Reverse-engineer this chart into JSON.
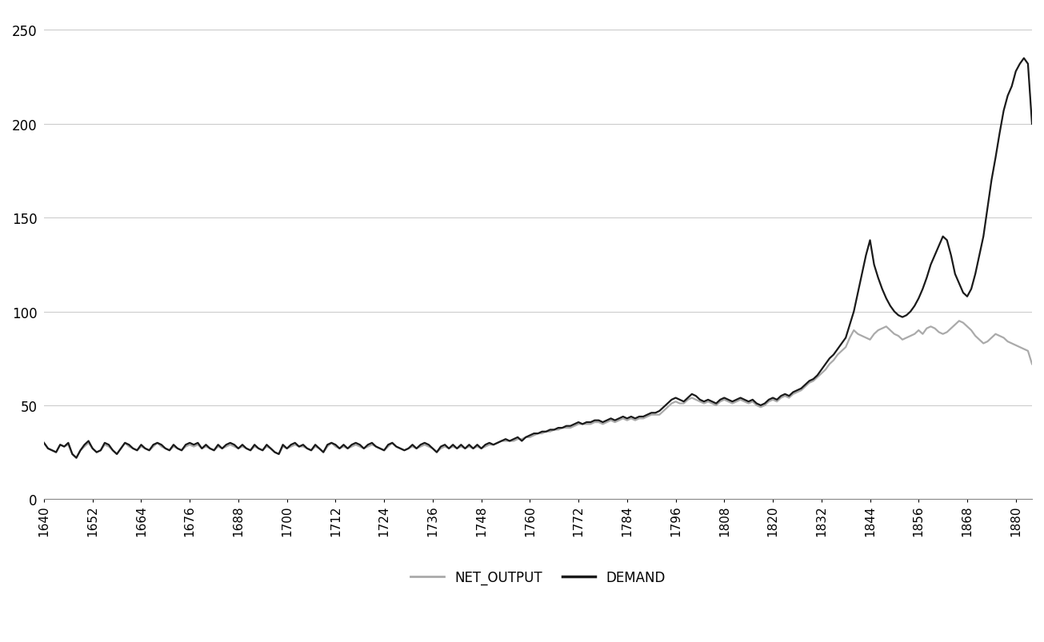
{
  "years": [
    1640,
    1641,
    1642,
    1643,
    1644,
    1645,
    1646,
    1647,
    1648,
    1649,
    1650,
    1651,
    1652,
    1653,
    1654,
    1655,
    1656,
    1657,
    1658,
    1659,
    1660,
    1661,
    1662,
    1663,
    1664,
    1665,
    1666,
    1667,
    1668,
    1669,
    1670,
    1671,
    1672,
    1673,
    1674,
    1675,
    1676,
    1677,
    1678,
    1679,
    1680,
    1681,
    1682,
    1683,
    1684,
    1685,
    1686,
    1687,
    1688,
    1689,
    1690,
    1691,
    1692,
    1693,
    1694,
    1695,
    1696,
    1697,
    1698,
    1699,
    1700,
    1701,
    1702,
    1703,
    1704,
    1705,
    1706,
    1707,
    1708,
    1709,
    1710,
    1711,
    1712,
    1713,
    1714,
    1715,
    1716,
    1717,
    1718,
    1719,
    1720,
    1721,
    1722,
    1723,
    1724,
    1725,
    1726,
    1727,
    1728,
    1729,
    1730,
    1731,
    1732,
    1733,
    1734,
    1735,
    1736,
    1737,
    1738,
    1739,
    1740,
    1741,
    1742,
    1743,
    1744,
    1745,
    1746,
    1747,
    1748,
    1749,
    1750,
    1751,
    1752,
    1753,
    1754,
    1755,
    1756,
    1757,
    1758,
    1759,
    1760,
    1761,
    1762,
    1763,
    1764,
    1765,
    1766,
    1767,
    1768,
    1769,
    1770,
    1771,
    1772,
    1773,
    1774,
    1775,
    1776,
    1777,
    1778,
    1779,
    1780,
    1781,
    1782,
    1783,
    1784,
    1785,
    1786,
    1787,
    1788,
    1789,
    1790,
    1791,
    1792,
    1793,
    1794,
    1795,
    1796,
    1797,
    1798,
    1799,
    1800,
    1801,
    1802,
    1803,
    1804,
    1805,
    1806,
    1807,
    1808,
    1809,
    1810,
    1811,
    1812,
    1813,
    1814,
    1815,
    1816,
    1817,
    1818,
    1819,
    1820,
    1821,
    1822,
    1823,
    1824,
    1825,
    1826,
    1827,
    1828,
    1829,
    1830,
    1831,
    1832,
    1833,
    1834,
    1835,
    1836,
    1837,
    1838,
    1839,
    1840,
    1841,
    1842,
    1843,
    1844,
    1845,
    1846,
    1847,
    1848,
    1849,
    1850,
    1851,
    1852,
    1853,
    1854,
    1855,
    1856,
    1857,
    1858,
    1859,
    1860,
    1861,
    1862,
    1863,
    1864,
    1865,
    1866,
    1867,
    1868,
    1869,
    1870,
    1871,
    1872,
    1873,
    1874,
    1875,
    1876,
    1877,
    1878,
    1879,
    1880,
    1881,
    1882,
    1883,
    1884
  ],
  "demand": [
    30,
    27,
    26,
    25,
    29,
    28,
    30,
    24,
    22,
    26,
    29,
    31,
    27,
    25,
    26,
    30,
    29,
    26,
    24,
    27,
    30,
    29,
    27,
    26,
    29,
    27,
    26,
    29,
    30,
    29,
    27,
    26,
    29,
    27,
    26,
    29,
    30,
    29,
    30,
    27,
    29,
    27,
    26,
    29,
    27,
    29,
    30,
    29,
    27,
    29,
    27,
    26,
    29,
    27,
    26,
    29,
    27,
    25,
    24,
    29,
    27,
    29,
    30,
    28,
    29,
    27,
    26,
    29,
    27,
    25,
    29,
    30,
    29,
    27,
    29,
    27,
    29,
    30,
    29,
    27,
    29,
    30,
    28,
    27,
    26,
    29,
    30,
    28,
    27,
    26,
    27,
    29,
    27,
    29,
    30,
    29,
    27,
    25,
    28,
    29,
    27,
    29,
    27,
    29,
    27,
    29,
    27,
    29,
    27,
    29,
    30,
    29,
    30,
    31,
    32,
    31,
    32,
    33,
    31,
    33,
    34,
    35,
    35,
    36,
    36,
    37,
    37,
    38,
    38,
    39,
    39,
    40,
    41,
    40,
    41,
    41,
    42,
    42,
    41,
    42,
    43,
    42,
    43,
    44,
    43,
    44,
    43,
    44,
    44,
    45,
    46,
    46,
    47,
    49,
    51,
    53,
    54,
    53,
    52,
    54,
    56,
    55,
    53,
    52,
    53,
    52,
    51,
    53,
    54,
    53,
    52,
    53,
    54,
    53,
    52,
    53,
    51,
    50,
    51,
    53,
    54,
    53,
    55,
    56,
    55,
    57,
    58,
    59,
    61,
    63,
    64,
    66,
    69,
    72,
    75,
    77,
    80,
    83,
    86,
    93,
    100,
    110,
    120,
    130,
    138,
    125,
    118,
    112,
    107,
    103,
    100,
    98,
    97,
    98,
    100,
    103,
    107,
    112,
    118,
    125,
    130,
    135,
    140,
    138,
    130,
    120,
    115,
    110,
    108,
    112,
    120,
    130,
    140,
    155,
    170,
    182,
    195,
    207,
    215,
    220,
    228,
    232,
    235,
    232,
    200
  ],
  "net_output": [
    30,
    27,
    26,
    25,
    29,
    28,
    29,
    24,
    22,
    26,
    28,
    30,
    27,
    25,
    26,
    29,
    28,
    26,
    24,
    27,
    30,
    28,
    27,
    26,
    28,
    27,
    26,
    28,
    30,
    28,
    27,
    26,
    28,
    27,
    26,
    28,
    29,
    28,
    29,
    27,
    28,
    27,
    26,
    28,
    27,
    28,
    29,
    28,
    27,
    28,
    27,
    26,
    28,
    27,
    26,
    28,
    27,
    25,
    24,
    28,
    27,
    28,
    29,
    28,
    28,
    27,
    26,
    28,
    27,
    25,
    28,
    30,
    28,
    27,
    28,
    27,
    28,
    29,
    28,
    27,
    28,
    29,
    28,
    27,
    26,
    28,
    30,
    28,
    27,
    26,
    27,
    28,
    27,
    28,
    29,
    28,
    27,
    25,
    27,
    28,
    27,
    28,
    27,
    28,
    27,
    28,
    27,
    28,
    27,
    28,
    29,
    29,
    30,
    31,
    31,
    31,
    31,
    32,
    32,
    33,
    33,
    34,
    35,
    35,
    36,
    36,
    37,
    37,
    38,
    38,
    38,
    39,
    40,
    40,
    40,
    40,
    41,
    41,
    40,
    41,
    42,
    41,
    42,
    43,
    42,
    43,
    42,
    43,
    43,
    44,
    45,
    45,
    45,
    47,
    49,
    51,
    52,
    51,
    51,
    53,
    54,
    53,
    52,
    51,
    52,
    51,
    50,
    52,
    53,
    52,
    51,
    52,
    53,
    52,
    51,
    52,
    50,
    49,
    50,
    52,
    53,
    52,
    54,
    55,
    54,
    56,
    57,
    58,
    60,
    62,
    63,
    65,
    67,
    69,
    72,
    74,
    77,
    79,
    81,
    86,
    90,
    88,
    87,
    86,
    85,
    88,
    90,
    91,
    92,
    90,
    88,
    87,
    85,
    86,
    87,
    88,
    90,
    88,
    91,
    92,
    91,
    89,
    88,
    89,
    91,
    93,
    95,
    94,
    92,
    90,
    87,
    85,
    83,
    84,
    86,
    88,
    87,
    86,
    84,
    83,
    82,
    81,
    80,
    79,
    72
  ],
  "demand_color": "#1a1a1a",
  "net_output_color": "#aaaaaa",
  "demand_linewidth": 1.6,
  "net_output_linewidth": 1.6,
  "legend_labels": [
    "NET_OUTPUT",
    "DEMAND"
  ],
  "legend_colors": [
    "#aaaaaa",
    "#1a1a1a"
  ],
  "yticks": [
    0,
    50,
    100,
    150,
    200,
    250
  ],
  "xticks": [
    1640,
    1652,
    1664,
    1676,
    1688,
    1700,
    1712,
    1724,
    1736,
    1748,
    1760,
    1772,
    1784,
    1796,
    1808,
    1820,
    1832,
    1844,
    1856,
    1868,
    1880
  ],
  "ylim": [
    0,
    260
  ],
  "xlim": [
    1640,
    1884
  ],
  "background_color": "#ffffff",
  "grid_color": "#cccccc"
}
